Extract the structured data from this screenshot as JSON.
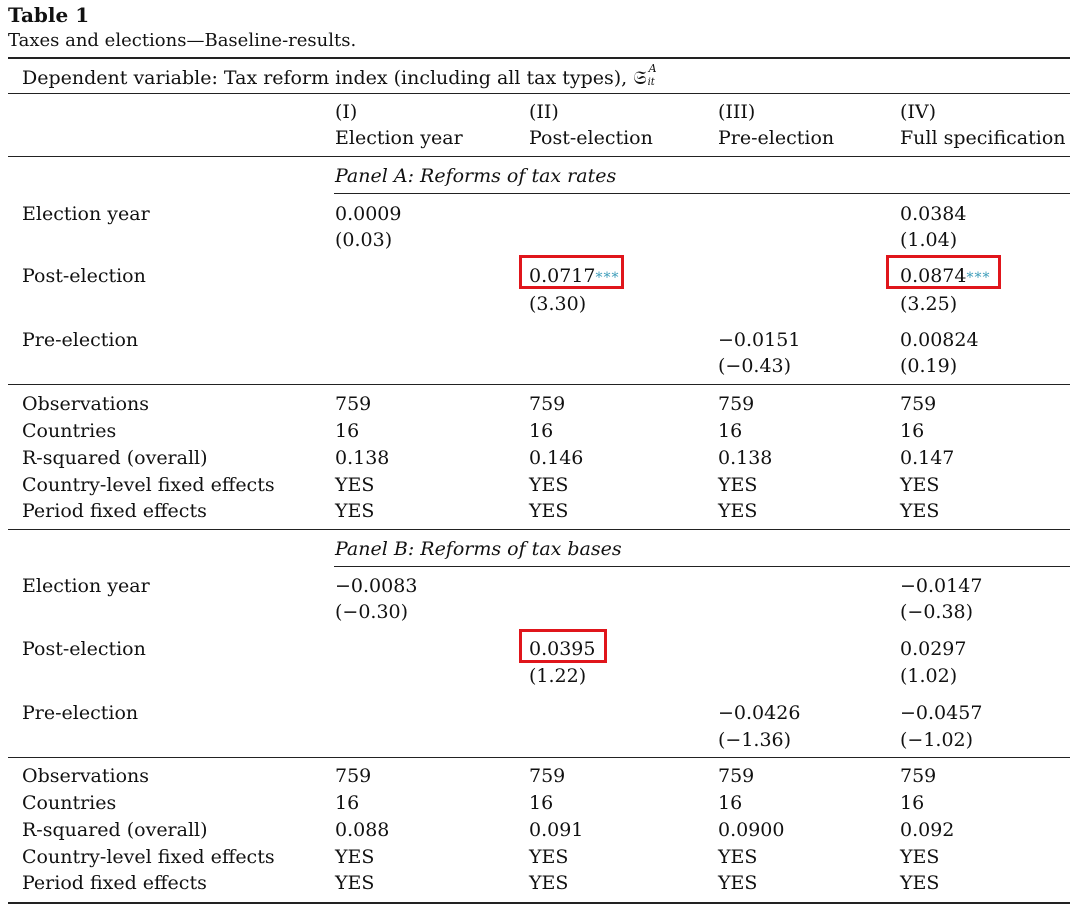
{
  "caption": {
    "title": "Table 1",
    "subtitle": "Taxes and elections—Baseline-results."
  },
  "dependent_variable": {
    "text": "Dependent variable: Tax reform index (including all tax types),",
    "symbol": "𝔖",
    "sup": "A",
    "sub": "it"
  },
  "columns": [
    {
      "num": "(I)",
      "label": "Election year"
    },
    {
      "num": "(II)",
      "label": "Post-election"
    },
    {
      "num": "(III)",
      "label": "Pre-election"
    },
    {
      "num": "(IV)",
      "label": "Full specification"
    }
  ],
  "significance_marker": "***",
  "highlight_color": "#e0151b",
  "star_color": "#3a9bb8",
  "panel_a": {
    "title": "Panel A: Reforms of tax rates",
    "coef_rows": [
      {
        "label": "Election year",
        "cells": [
          {
            "coef": "0.0009",
            "t": "(0.03)"
          },
          {
            "coef": "",
            "t": ""
          },
          {
            "coef": "",
            "t": ""
          },
          {
            "coef": "0.0384",
            "t": "(1.04)"
          }
        ]
      },
      {
        "label": "Post-election",
        "cells": [
          {
            "coef": "",
            "t": ""
          },
          {
            "coef": "0.0717",
            "t": "(3.30)"
          },
          {
            "coef": "",
            "t": ""
          },
          {
            "coef": "0.0874",
            "t": "(3.25)"
          }
        ]
      },
      {
        "label": "Pre-election",
        "cells": [
          {
            "coef": "",
            "t": ""
          },
          {
            "coef": "",
            "t": ""
          },
          {
            "coef": "−0.0151",
            "t": "(−0.43)"
          },
          {
            "coef": "0.00824",
            "t": "(0.19)"
          }
        ]
      }
    ],
    "stats": [
      {
        "label": "Observations",
        "values": [
          "759",
          "759",
          "759",
          "759"
        ]
      },
      {
        "label": "Countries",
        "values": [
          "16",
          "16",
          "16",
          "16"
        ]
      },
      {
        "label": "R-squared (overall)",
        "values": [
          "0.138",
          "0.146",
          "0.138",
          "0.147"
        ]
      },
      {
        "label": "Country-level fixed effects",
        "values": [
          "YES",
          "YES",
          "YES",
          "YES"
        ]
      },
      {
        "label": "Period fixed effects",
        "values": [
          "YES",
          "YES",
          "YES",
          "YES"
        ]
      }
    ]
  },
  "panel_b": {
    "title": "Panel B: Reforms of tax bases",
    "coef_rows": [
      {
        "label": "Election year",
        "cells": [
          {
            "coef": "−0.0083",
            "t": "(−0.30)"
          },
          {
            "coef": "",
            "t": ""
          },
          {
            "coef": "",
            "t": ""
          },
          {
            "coef": "−0.0147",
            "t": "(−0.38)"
          }
        ]
      },
      {
        "label": "Post-election",
        "cells": [
          {
            "coef": "",
            "t": ""
          },
          {
            "coef": "0.0395",
            "t": "(1.22)"
          },
          {
            "coef": "",
            "t": ""
          },
          {
            "coef": "0.0297",
            "t": "(1.02)"
          }
        ]
      },
      {
        "label": "Pre-election",
        "cells": [
          {
            "coef": "",
            "t": ""
          },
          {
            "coef": "",
            "t": ""
          },
          {
            "coef": "−0.0426",
            "t": "(−1.36)"
          },
          {
            "coef": "−0.0457",
            "t": "(−1.02)"
          }
        ]
      }
    ],
    "stats": [
      {
        "label": "Observations",
        "values": [
          "759",
          "759",
          "759",
          "759"
        ]
      },
      {
        "label": "Countries",
        "values": [
          "16",
          "16",
          "16",
          "16"
        ]
      },
      {
        "label": "R-squared (overall)",
        "values": [
          "0.088",
          "0.091",
          "0.0900",
          "0.092"
        ]
      },
      {
        "label": "Country-level fixed effects",
        "values": [
          "YES",
          "YES",
          "YES",
          "YES"
        ]
      },
      {
        "label": "Period fixed effects",
        "values": [
          "YES",
          "YES",
          "YES",
          "YES"
        ]
      }
    ]
  }
}
